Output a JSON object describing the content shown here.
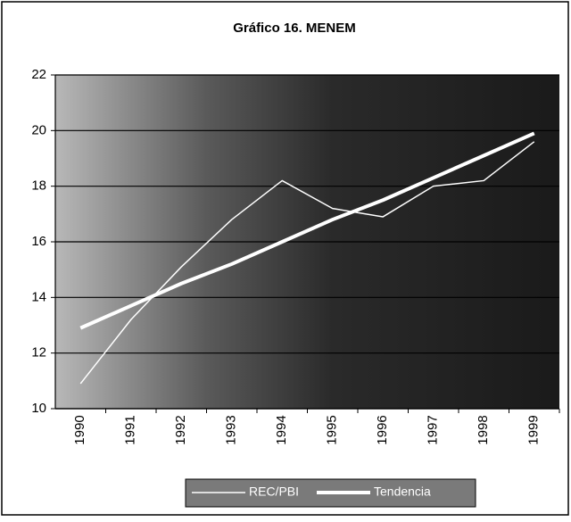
{
  "chart_data": {
    "type": "line",
    "title": "Gráfico 16. MENEM",
    "categories": [
      "1990",
      "1991",
      "1992",
      "1993",
      "1994",
      "1995",
      "1996",
      "1997",
      "1998",
      "1999"
    ],
    "series": [
      {
        "name": "REC/PBI",
        "color": "#ffffff",
        "values": [
          10.9,
          13.2,
          15.1,
          16.8,
          18.2,
          17.2,
          16.9,
          18.0,
          18.2,
          19.6
        ]
      },
      {
        "name": "Tendencia",
        "color": "#ffffff",
        "values": [
          12.9,
          13.7,
          14.5,
          15.2,
          16.0,
          16.8,
          17.5,
          18.3,
          19.1,
          19.9
        ]
      }
    ],
    "ylim": [
      10,
      22
    ],
    "yticks": [
      10,
      12,
      14,
      16,
      18,
      20,
      22
    ],
    "grid": true
  }
}
